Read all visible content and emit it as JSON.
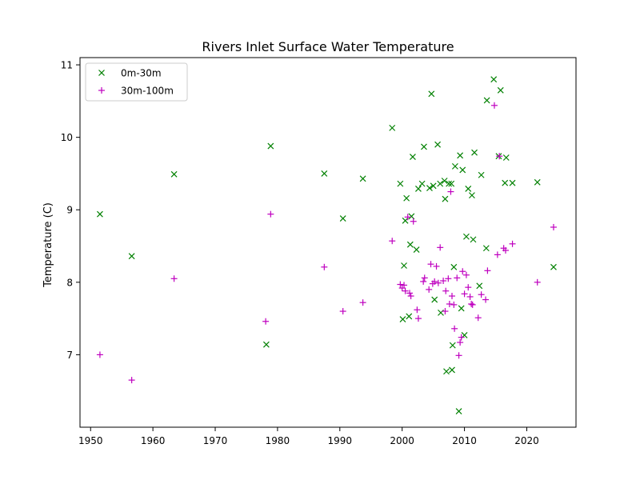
{
  "chart_data": {
    "type": "scatter",
    "title": "Rivers Inlet Surface Water Temperature",
    "xlabel": "",
    "ylabel": "Temperature (C)",
    "xlim": [
      1948.3,
      2027.9
    ],
    "ylim": [
      6.0,
      11.1
    ],
    "xticks": [
      1950,
      1960,
      1970,
      1980,
      1990,
      2000,
      2010,
      2020
    ],
    "yticks": [
      7,
      8,
      9,
      10,
      11
    ],
    "grid": false,
    "legend": "top-left",
    "series": [
      {
        "name": "0m-30m",
        "marker": "x",
        "color": "#008000",
        "points": [
          [
            1951.5,
            8.94
          ],
          [
            1956.6,
            8.36
          ],
          [
            1963.4,
            9.49
          ],
          [
            1978.2,
            7.14
          ],
          [
            1978.9,
            9.88
          ],
          [
            1987.5,
            9.5
          ],
          [
            1990.5,
            8.88
          ],
          [
            1993.7,
            9.43
          ],
          [
            1998.4,
            10.13
          ],
          [
            1999.7,
            9.36
          ],
          [
            2000.1,
            7.49
          ],
          [
            2000.3,
            8.23
          ],
          [
            2000.5,
            8.85
          ],
          [
            2000.7,
            9.16
          ],
          [
            2001.1,
            7.53
          ],
          [
            2001.3,
            8.52
          ],
          [
            2001.5,
            8.91
          ],
          [
            2001.7,
            9.73
          ],
          [
            2002.3,
            8.45
          ],
          [
            2002.6,
            9.29
          ],
          [
            2003.2,
            9.36
          ],
          [
            2003.5,
            9.87
          ],
          [
            2004.4,
            9.3
          ],
          [
            2004.7,
            10.6
          ],
          [
            2005.0,
            9.33
          ],
          [
            2005.2,
            7.76
          ],
          [
            2005.7,
            9.9
          ],
          [
            2006.1,
            9.36
          ],
          [
            2006.2,
            7.58
          ],
          [
            2006.8,
            9.4
          ],
          [
            2006.9,
            9.15
          ],
          [
            2007.1,
            6.77
          ],
          [
            2007.5,
            9.36
          ],
          [
            2007.9,
            9.36
          ],
          [
            2008.0,
            6.79
          ],
          [
            2008.1,
            7.13
          ],
          [
            2008.3,
            8.21
          ],
          [
            2008.5,
            9.6
          ],
          [
            2009.1,
            6.22
          ],
          [
            2009.3,
            9.75
          ],
          [
            2009.5,
            7.64
          ],
          [
            2009.7,
            9.55
          ],
          [
            2010.0,
            7.27
          ],
          [
            2010.3,
            8.63
          ],
          [
            2010.6,
            9.29
          ],
          [
            2011.2,
            9.2
          ],
          [
            2011.4,
            8.59
          ],
          [
            2011.6,
            9.79
          ],
          [
            2012.4,
            7.95
          ],
          [
            2012.7,
            9.48
          ],
          [
            2013.5,
            8.47
          ],
          [
            2013.6,
            10.51
          ],
          [
            2014.7,
            10.8
          ],
          [
            2015.5,
            9.74
          ],
          [
            2015.8,
            10.65
          ],
          [
            2016.5,
            9.37
          ],
          [
            2016.7,
            9.72
          ],
          [
            2017.7,
            9.37
          ],
          [
            2021.7,
            9.38
          ],
          [
            2024.3,
            8.21
          ]
        ]
      },
      {
        "name": "30m-100m",
        "marker": "+",
        "color": "#bf00bf",
        "points": [
          [
            1951.5,
            7.0
          ],
          [
            1956.6,
            6.65
          ],
          [
            1963.4,
            8.05
          ],
          [
            1978.1,
            7.46
          ],
          [
            1978.9,
            8.94
          ],
          [
            1987.5,
            8.21
          ],
          [
            1990.5,
            7.6
          ],
          [
            1993.7,
            7.72
          ],
          [
            1998.4,
            8.57
          ],
          [
            1999.7,
            7.97
          ],
          [
            2000.0,
            7.92
          ],
          [
            2000.3,
            7.96
          ],
          [
            2000.5,
            7.88
          ],
          [
            2000.9,
            8.9
          ],
          [
            2001.2,
            7.85
          ],
          [
            2001.4,
            7.81
          ],
          [
            2001.8,
            8.84
          ],
          [
            2002.4,
            7.62
          ],
          [
            2002.6,
            7.5
          ],
          [
            2003.4,
            8.01
          ],
          [
            2003.6,
            8.06
          ],
          [
            2004.3,
            7.9
          ],
          [
            2004.6,
            8.25
          ],
          [
            2004.9,
            7.98
          ],
          [
            2005.2,
            8.01
          ],
          [
            2005.5,
            8.22
          ],
          [
            2005.8,
            7.99
          ],
          [
            2006.1,
            8.48
          ],
          [
            2006.6,
            8.02
          ],
          [
            2006.9,
            7.6
          ],
          [
            2007.0,
            7.88
          ],
          [
            2007.4,
            8.05
          ],
          [
            2007.6,
            7.7
          ],
          [
            2007.8,
            9.25
          ],
          [
            2008.0,
            7.81
          ],
          [
            2008.3,
            7.69
          ],
          [
            2008.4,
            7.36
          ],
          [
            2008.8,
            8.06
          ],
          [
            2009.1,
            6.99
          ],
          [
            2009.3,
            7.17
          ],
          [
            2009.5,
            7.24
          ],
          [
            2009.7,
            8.15
          ],
          [
            2010.0,
            7.84
          ],
          [
            2010.3,
            8.1
          ],
          [
            2010.6,
            7.93
          ],
          [
            2010.9,
            7.8
          ],
          [
            2011.1,
            7.7
          ],
          [
            2011.3,
            7.69
          ],
          [
            2012.2,
            7.51
          ],
          [
            2012.7,
            7.83
          ],
          [
            2013.4,
            7.76
          ],
          [
            2013.7,
            8.16
          ],
          [
            2014.8,
            10.44
          ],
          [
            2015.3,
            8.38
          ],
          [
            2015.6,
            9.74
          ],
          [
            2016.3,
            8.47
          ],
          [
            2016.6,
            8.44
          ],
          [
            2017.7,
            8.53
          ],
          [
            2021.7,
            8.0
          ],
          [
            2024.3,
            8.76
          ]
        ]
      }
    ]
  }
}
